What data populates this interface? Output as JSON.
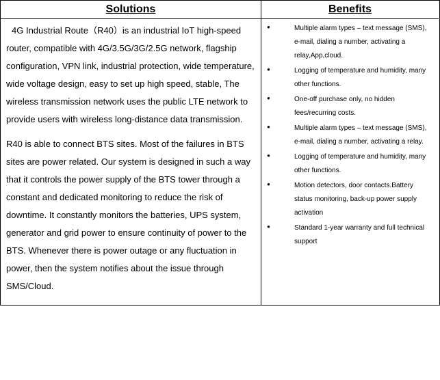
{
  "headers": {
    "solutions": "Solutions",
    "benefits": "Benefits"
  },
  "solutions": {
    "para1": "4G Industrial Route（R40）is an industrial IoT high-speed router, compatible with 4G/3.5G/3G/2.5G network, flagship configuration, VPN link, industrial protection, wide temperature, wide voltage design, easy to set up high speed, stable, The wireless transmission network uses the public LTE network to provide users with wireless long-distance data transmission.",
    "para2": "R40 is able to connect BTS sites. Most of the failures in BTS sites are power related. Our system is designed in such a way that it controls the power supply of the BTS tower through a constant and dedicated monitoring to reduce the risk of downtime. It constantly monitors the batteries, UPS system, generator and grid power to ensure continuity of power to the BTS. Whenever there is power outage or any fluctuation in power, then the system notifies about the issue through SMS/Cloud."
  },
  "benefits": {
    "items": [
      "Multiple alarm types – text message (SMS), e-mail, dialing a number, activating a relay,App,cloud.",
      "Logging of temperature and humidity, many other functions.",
      "One-off purchase only, no hidden fees/recurring costs.",
      "Multiple alarm types – text message (SMS), e-mail, dialing a number, activating a relay.",
      "Logging of temperature and humidity, many other functions.",
      "Motion detectors, door contacts.Battery status monitoring, back-up power supply activation",
      "Standard 1-year warranty and full technical support"
    ]
  }
}
